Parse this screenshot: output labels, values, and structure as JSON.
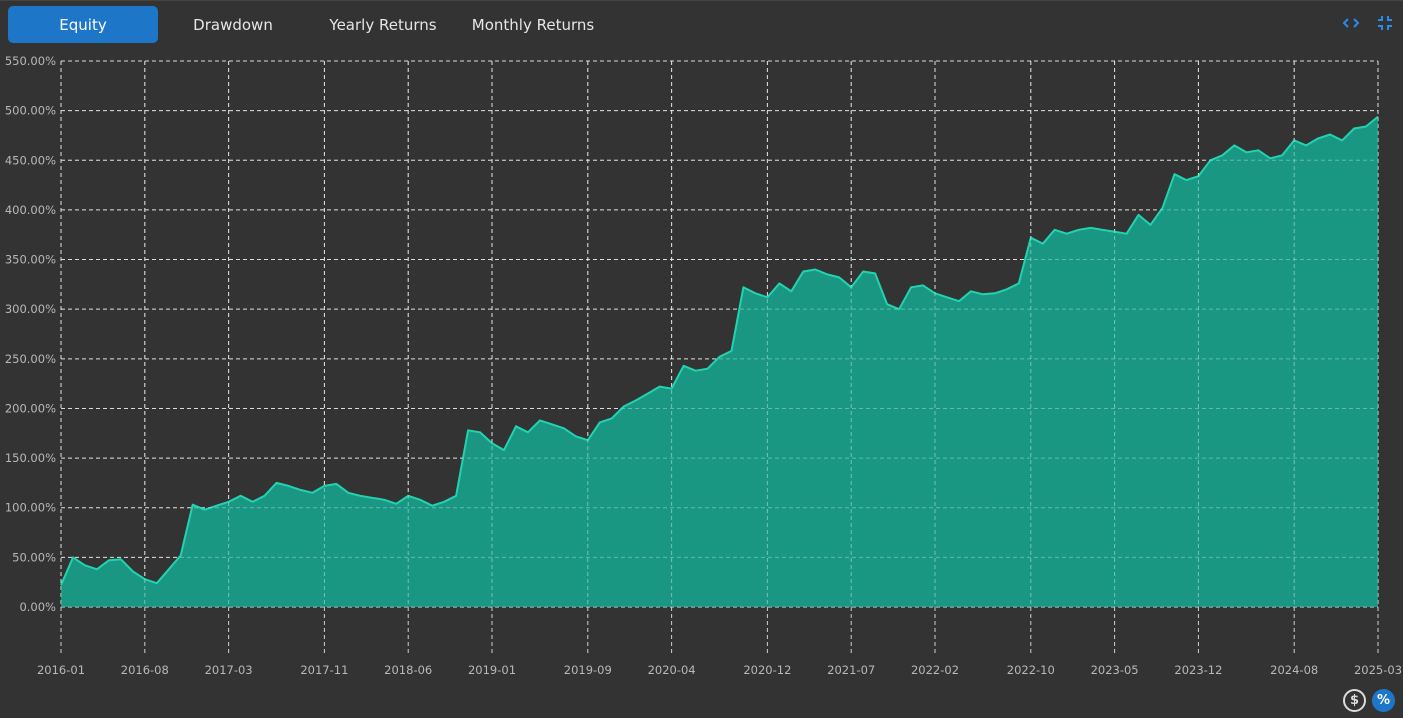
{
  "tabs": [
    {
      "label": "Equity",
      "active": true
    },
    {
      "label": "Drawdown",
      "active": false
    },
    {
      "label": "Yearly Returns",
      "active": false
    },
    {
      "label": "Monthly Returns",
      "active": false
    }
  ],
  "toolbar": {
    "expand_icon": "code-brackets-icon",
    "collapse_icon": "compress-icon"
  },
  "toggles": {
    "currency_label": "$",
    "percent_label": "%",
    "active": "percent"
  },
  "colors": {
    "background": "#333333",
    "accent": "#1e76c8",
    "series_fill": "#17a08a",
    "series_line": "#22d3b0",
    "grid": "#d0d0d0",
    "tick_text": "#b8b8b8"
  },
  "chart_data": {
    "type": "area",
    "title": "",
    "xlabel": "",
    "ylabel": "",
    "ylim": [
      -0.6,
      5.5
    ],
    "y_ticks": [
      {
        "value": 5.5,
        "label": "550.00%"
      },
      {
        "value": 5.0,
        "label": "500.00%"
      },
      {
        "value": 4.5,
        "label": "450.00%"
      },
      {
        "value": 4.0,
        "label": "400.00%"
      },
      {
        "value": 3.5,
        "label": "350.00%"
      },
      {
        "value": 3.0,
        "label": "300.00%"
      },
      {
        "value": 2.5,
        "label": "250.00%"
      },
      {
        "value": 2.0,
        "label": "200.00%"
      },
      {
        "value": 1.5,
        "label": "150.00%"
      },
      {
        "value": 1.0,
        "label": "100.00%"
      },
      {
        "value": 0.5,
        "label": "50.00%"
      },
      {
        "value": 0.0,
        "label": "0.00%"
      }
    ],
    "x_ticks": [
      "2016-01",
      "2016-08",
      "2017-03",
      "2017-11",
      "2018-06",
      "2019-01",
      "2019-09",
      "2020-04",
      "2020-12",
      "2021-07",
      "2022-02",
      "2022-10",
      "2023-05",
      "2023-12",
      "2024-08",
      "2025-03"
    ],
    "grid": true,
    "series": [
      {
        "x": [
          "2016-01",
          "2016-02",
          "2016-03",
          "2016-04",
          "2016-05",
          "2016-06",
          "2016-07",
          "2016-08",
          "2016-09",
          "2016-10",
          "2016-11",
          "2016-12",
          "2017-01",
          "2017-02",
          "2017-03",
          "2017-04",
          "2017-05",
          "2017-06",
          "2017-07",
          "2017-08",
          "2017-09",
          "2017-10",
          "2017-11",
          "2017-12",
          "2018-01",
          "2018-02",
          "2018-03",
          "2018-04",
          "2018-05",
          "2018-06",
          "2018-07",
          "2018-08",
          "2018-09",
          "2018-10",
          "2018-11",
          "2018-12",
          "2019-01",
          "2019-02",
          "2019-03",
          "2019-04",
          "2019-05",
          "2019-06",
          "2019-07",
          "2019-08",
          "2019-09",
          "2019-10",
          "2019-11",
          "2019-12",
          "2020-01",
          "2020-02",
          "2020-03",
          "2020-04",
          "2020-05",
          "2020-06",
          "2020-07",
          "2020-08",
          "2020-09",
          "2020-10",
          "2020-11",
          "2020-12",
          "2021-01",
          "2021-02",
          "2021-03",
          "2021-04",
          "2021-05",
          "2021-06",
          "2021-07",
          "2021-08",
          "2021-09",
          "2021-10",
          "2021-11",
          "2021-12",
          "2022-01",
          "2022-02",
          "2022-03",
          "2022-04",
          "2022-05",
          "2022-06",
          "2022-07",
          "2022-08",
          "2022-09",
          "2022-10",
          "2022-11",
          "2022-12",
          "2023-01",
          "2023-02",
          "2023-03",
          "2023-04",
          "2023-05",
          "2023-06",
          "2023-07",
          "2023-08",
          "2023-09",
          "2023-10",
          "2023-11",
          "2023-12",
          "2024-01",
          "2024-02",
          "2024-03",
          "2024-04",
          "2024-05",
          "2024-06",
          "2024-07",
          "2024-08",
          "2024-09",
          "2024-10",
          "2024-11",
          "2024-12",
          "2025-01",
          "2025-02",
          "2025-03"
        ],
        "values": [
          0.22,
          0.5,
          0.42,
          0.38,
          0.47,
          0.48,
          0.36,
          0.28,
          0.24,
          0.38,
          0.52,
          1.03,
          0.98,
          1.02,
          1.06,
          1.12,
          1.06,
          1.12,
          1.25,
          1.22,
          1.18,
          1.15,
          1.22,
          1.24,
          1.15,
          1.12,
          1.1,
          1.08,
          1.04,
          1.12,
          1.08,
          1.02,
          1.06,
          1.12,
          1.78,
          1.76,
          1.65,
          1.58,
          1.82,
          1.76,
          1.88,
          1.84,
          1.8,
          1.72,
          1.68,
          1.86,
          1.9,
          2.02,
          2.08,
          2.15,
          2.22,
          2.2,
          2.43,
          2.38,
          2.4,
          2.52,
          2.58,
          3.22,
          3.16,
          3.12,
          3.26,
          3.18,
          3.38,
          3.4,
          3.35,
          3.32,
          3.22,
          3.38,
          3.36,
          3.05,
          3.0,
          3.22,
          3.24,
          3.16,
          3.12,
          3.08,
          3.18,
          3.15,
          3.16,
          3.2,
          3.26,
          3.72,
          3.66,
          3.8,
          3.76,
          3.8,
          3.82,
          3.8,
          3.78,
          3.76,
          3.95,
          3.85,
          4.02,
          4.36,
          4.3,
          4.34,
          4.5,
          4.55,
          4.65,
          4.58,
          4.6,
          4.52,
          4.55,
          4.7,
          4.65,
          4.72,
          4.76,
          4.7,
          4.82,
          4.84,
          4.94
        ]
      }
    ]
  }
}
